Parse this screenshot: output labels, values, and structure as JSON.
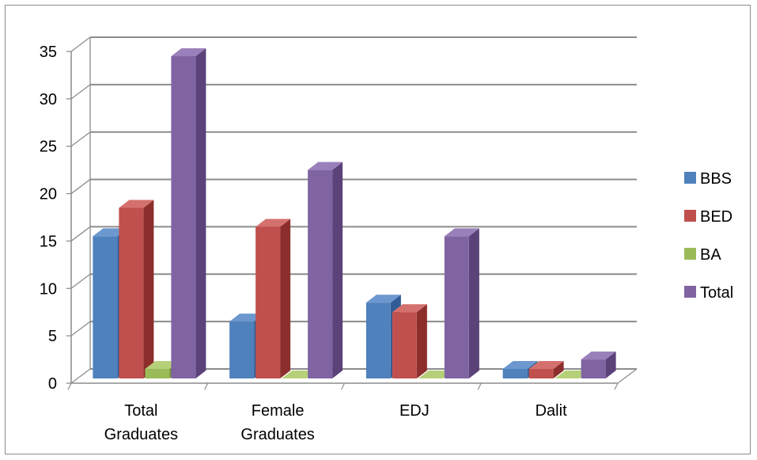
{
  "chart_data": {
    "type": "bar",
    "style": "3d-clustered",
    "categories": [
      [
        "Total",
        "Graduates"
      ],
      [
        "Female",
        "Graduates"
      ],
      [
        "EDJ"
      ],
      [
        "Dalit"
      ]
    ],
    "series": [
      {
        "name": "BBS",
        "values": [
          15,
          6,
          8,
          1
        ],
        "color": "#4F81BD",
        "side": "#2F5C94",
        "top": "#6C98CF"
      },
      {
        "name": "BED",
        "values": [
          18,
          16,
          7,
          1
        ],
        "color": "#C0504D",
        "side": "#8C2F2C",
        "top": "#D4716E"
      },
      {
        "name": "BA",
        "values": [
          1,
          0,
          0,
          0
        ],
        "color": "#9BBB59",
        "side": "#6F8C38",
        "top": "#B5D078"
      },
      {
        "name": "Total",
        "values": [
          34,
          22,
          15,
          2
        ],
        "color": "#8064A2",
        "side": "#5B4279",
        "top": "#9A80BA"
      }
    ],
    "ylim": [
      0,
      35
    ],
    "yticks": [
      "0",
      "5",
      "10",
      "15",
      "20",
      "25",
      "30",
      "35"
    ],
    "grid": true,
    "legend": "right"
  }
}
